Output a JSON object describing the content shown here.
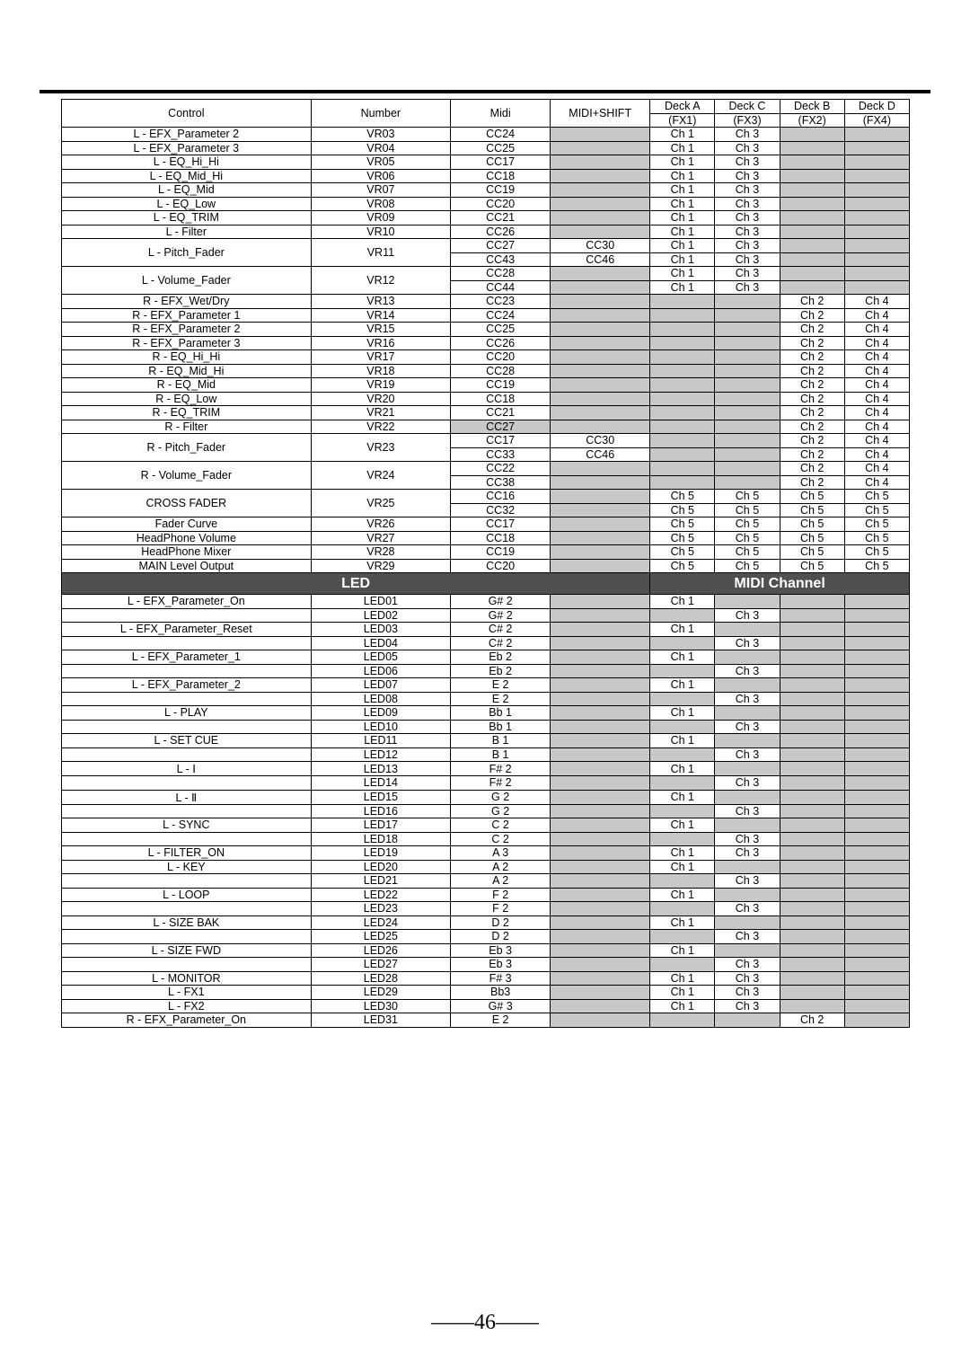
{
  "header": {
    "control": "Control",
    "number": "Number",
    "midi": "Midi",
    "midi_shift": "MIDI+SHIFT",
    "deck_a": "Deck A",
    "deck_a_sub": "(FX1)",
    "deck_c": "Deck C",
    "deck_c_sub": "(FX3)",
    "deck_b": "Deck B",
    "deck_b_sub": "(FX2)",
    "deck_d": "Deck D",
    "deck_d_sub": "(FX4)"
  },
  "rows1": [
    {
      "c": "L - EFX_Parameter 2",
      "n": "VR03",
      "m": "CC24",
      "s": "",
      "a": "Ch 1",
      "cc": "Ch 3",
      "b": "",
      "d": "",
      "sg": true,
      "bg": true,
      "dg": true
    },
    {
      "c": "L - EFX_Parameter 3",
      "n": "VR04",
      "m": "CC25",
      "s": "",
      "a": "Ch 1",
      "cc": "Ch 3",
      "b": "",
      "d": "",
      "sg": true,
      "bg": true,
      "dg": true
    },
    {
      "c": "L - EQ_Hi_Hi",
      "n": "VR05",
      "m": "CC17",
      "s": "",
      "a": "Ch 1",
      "cc": "Ch 3",
      "b": "",
      "d": "",
      "sg": true,
      "bg": true,
      "dg": true
    },
    {
      "c": "L - EQ_Mid_Hi",
      "n": "VR06",
      "m": "CC18",
      "s": "",
      "a": "Ch 1",
      "cc": "Ch 3",
      "b": "",
      "d": "",
      "sg": true,
      "bg": true,
      "dg": true
    },
    {
      "c": "L - EQ_Mid",
      "n": "VR07",
      "m": "CC19",
      "s": "",
      "a": "Ch 1",
      "cc": "Ch 3",
      "b": "",
      "d": "",
      "sg": true,
      "bg": true,
      "dg": true
    },
    {
      "c": "L - EQ_Low",
      "n": "VR08",
      "m": "CC20",
      "s": "",
      "a": "Ch 1",
      "cc": "Ch 3",
      "b": "",
      "d": "",
      "sg": true,
      "bg": true,
      "dg": true
    },
    {
      "c": "L - EQ_TRIM",
      "n": "VR09",
      "m": "CC21",
      "s": "",
      "a": "Ch 1",
      "cc": "Ch 3",
      "b": "",
      "d": "",
      "sg": true,
      "bg": true,
      "dg": true
    },
    {
      "c": "L - Filter",
      "n": "VR10",
      "m": "CC26",
      "s": "",
      "a": "Ch 1",
      "cc": "Ch 3",
      "b": "",
      "d": "",
      "sg": true,
      "bg": true,
      "dg": true
    }
  ],
  "span2a": [
    {
      "c": "L - Pitch_Fader",
      "n": "VR11",
      "r1": {
        "m": "CC27",
        "s": "CC30",
        "a": "Ch 1",
        "cc": "Ch 3",
        "b": "",
        "d": "",
        "bg": true,
        "dg": true
      },
      "r2": {
        "m": "CC43",
        "s": "CC46",
        "a": "Ch 1",
        "cc": "Ch 3",
        "b": "",
        "d": "",
        "bg": true,
        "dg": true
      }
    },
    {
      "c": "L - Volume_Fader",
      "n": "VR12",
      "r1": {
        "m": "CC28",
        "s": "",
        "a": "Ch 1",
        "cc": "Ch 3",
        "b": "",
        "d": "",
        "sg": true,
        "bg": true,
        "dg": true
      },
      "r2": {
        "m": "CC44",
        "s": "",
        "a": "Ch 1",
        "cc": "Ch 3",
        "b": "",
        "d": "",
        "sg": true,
        "bg": true,
        "dg": true
      }
    }
  ],
  "rows2": [
    {
      "c": "R - EFX_Wet/Dry",
      "n": "VR13",
      "m": "CC23",
      "s": "",
      "a": "",
      "cc": "",
      "b": "Ch 2",
      "d": "Ch 4",
      "sg": true,
      "ag": true,
      "ccg": true
    },
    {
      "c": "R - EFX_Parameter 1",
      "n": "VR14",
      "m": "CC24",
      "s": "",
      "a": "",
      "cc": "",
      "b": "Ch 2",
      "d": "Ch 4",
      "sg": true,
      "ag": true,
      "ccg": true
    },
    {
      "c": "R - EFX_Parameter 2",
      "n": "VR15",
      "m": "CC25",
      "s": "",
      "a": "",
      "cc": "",
      "b": "Ch 2",
      "d": "Ch 4",
      "sg": true,
      "ag": true,
      "ccg": true
    },
    {
      "c": "R - EFX_Parameter 3",
      "n": "VR16",
      "m": "CC26",
      "s": "",
      "a": "",
      "cc": "",
      "b": "Ch 2",
      "d": "Ch 4",
      "sg": true,
      "ag": true,
      "ccg": true
    },
    {
      "c": "R - EQ_Hi_Hi",
      "n": "VR17",
      "m": "CC20",
      "s": "",
      "a": "",
      "cc": "",
      "b": "Ch 2",
      "d": "Ch 4",
      "sg": true,
      "ag": true,
      "ccg": true
    },
    {
      "c": "R - EQ_Mid_Hi",
      "n": "VR18",
      "m": "CC28",
      "s": "",
      "a": "",
      "cc": "",
      "b": "Ch 2",
      "d": "Ch 4",
      "sg": true,
      "ag": true,
      "ccg": true
    },
    {
      "c": "R - EQ_Mid",
      "n": "VR19",
      "m": "CC19",
      "s": "",
      "a": "",
      "cc": "",
      "b": "Ch 2",
      "d": "Ch 4",
      "sg": true,
      "ag": true,
      "ccg": true
    },
    {
      "c": "R - EQ_Low",
      "n": "VR20",
      "m": "CC18",
      "s": "",
      "a": "",
      "cc": "",
      "b": "Ch 2",
      "d": "Ch 4",
      "sg": true,
      "ag": true,
      "ccg": true
    },
    {
      "c": "R - EQ_TRIM",
      "n": "VR21",
      "m": "CC21",
      "s": "",
      "a": "",
      "cc": "",
      "b": "Ch 2",
      "d": "Ch 4",
      "sg": true,
      "ag": true,
      "ccg": true
    },
    {
      "c": "R - Filter",
      "n": "VR22",
      "m": "CC27",
      "s": "",
      "a": "",
      "cc": "",
      "b": "Ch 2",
      "d": "Ch 4",
      "mg": true,
      "sg": true,
      "ag": true,
      "ccg": true
    }
  ],
  "span2b": [
    {
      "c": "R - Pitch_Fader",
      "n": "VR23",
      "r1": {
        "m": "CC17",
        "s": "CC30",
        "a": "",
        "cc": "",
        "b": "Ch 2",
        "d": "Ch 4",
        "ag": true,
        "ccg": true
      },
      "r2": {
        "m": "CC33",
        "s": "CC46",
        "a": "",
        "cc": "",
        "b": "Ch 2",
        "d": "Ch 4",
        "ag": true,
        "ccg": true
      }
    },
    {
      "c": "R - Volume_Fader",
      "n": "VR24",
      "r1": {
        "m": "CC22",
        "s": "",
        "a": "",
        "cc": "",
        "b": "Ch 2",
        "d": "Ch 4",
        "sg": true,
        "ag": true,
        "ccg": true
      },
      "r2": {
        "m": "CC38",
        "s": "",
        "a": "",
        "cc": "",
        "b": "Ch 2",
        "d": "Ch 4",
        "sg": true,
        "ag": true,
        "ccg": true
      }
    },
    {
      "c": "CROSS FADER",
      "n": "VR25",
      "r1": {
        "m": "CC16",
        "s": "",
        "a": "Ch 5",
        "cc": "Ch 5",
        "b": "Ch 5",
        "d": "Ch 5",
        "sg": true
      },
      "r2": {
        "m": "CC32",
        "s": "",
        "a": "Ch 5",
        "cc": "Ch 5",
        "b": "Ch 5",
        "d": "Ch 5",
        "sg": true
      }
    }
  ],
  "rows3": [
    {
      "c": "Fader Curve",
      "n": "VR26",
      "m": "CC17",
      "s": "",
      "a": "Ch 5",
      "cc": "Ch 5",
      "b": "Ch 5",
      "d": "Ch 5",
      "sg": true
    },
    {
      "c": "HeadPhone Volume",
      "n": "VR27",
      "m": "CC18",
      "s": "",
      "a": "Ch 5",
      "cc": "Ch 5",
      "b": "Ch 5",
      "d": "Ch 5",
      "sg": true
    },
    {
      "c": "HeadPhone Mixer",
      "n": "VR28",
      "m": "CC19",
      "s": "",
      "a": "Ch 5",
      "cc": "Ch 5",
      "b": "Ch 5",
      "d": "Ch 5",
      "sg": true
    },
    {
      "c": "MAIN Level Output",
      "n": "VR29",
      "m": "CC20",
      "s": "",
      "a": "Ch 5",
      "cc": "Ch 5",
      "b": "Ch 5",
      "d": "Ch 5",
      "sg": true
    }
  ],
  "section": {
    "led": "LED",
    "midi_channel": "MIDI Channel"
  },
  "rows4": [
    {
      "c": "L - EFX_Parameter_On",
      "n": "LED01",
      "m": "G# 2",
      "s": "",
      "a": "Ch 1",
      "cc": "",
      "b": "",
      "d": "",
      "sg": true,
      "ccg": true,
      "bg": true,
      "dg": true
    },
    {
      "c": "",
      "n": "LED02",
      "m": "G# 2",
      "s": "",
      "a": "",
      "cc": "Ch 3",
      "b": "",
      "d": "",
      "sg": true,
      "ag": true,
      "bg": true,
      "dg": true
    },
    {
      "c": "L - EFX_Parameter_Reset",
      "n": "LED03",
      "m": "C# 2",
      "s": "",
      "a": "Ch 1",
      "cc": "",
      "b": "",
      "d": "",
      "sg": true,
      "ccg": true,
      "bg": true,
      "dg": true
    },
    {
      "c": "",
      "n": "LED04",
      "m": "C# 2",
      "s": "",
      "a": "",
      "cc": "Ch 3",
      "b": "",
      "d": "",
      "sg": true,
      "ag": true,
      "bg": true,
      "dg": true
    },
    {
      "c": "L - EFX_Parameter_1",
      "n": "LED05",
      "m": "Eb 2",
      "s": "",
      "a": "Ch 1",
      "cc": "",
      "b": "",
      "d": "",
      "sg": true,
      "ccg": true,
      "bg": true,
      "dg": true
    },
    {
      "c": "",
      "n": "LED06",
      "m": "Eb 2",
      "s": "",
      "a": "",
      "cc": "Ch 3",
      "b": "",
      "d": "",
      "sg": true,
      "ag": true,
      "bg": true,
      "dg": true
    },
    {
      "c": "L - EFX_Parameter_2",
      "n": "LED07",
      "m": "E 2",
      "s": "",
      "a": "Ch 1",
      "cc": "",
      "b": "",
      "d": "",
      "sg": true,
      "ccg": true,
      "bg": true,
      "dg": true
    },
    {
      "c": "",
      "n": "LED08",
      "m": "E 2",
      "s": "",
      "a": "",
      "cc": "Ch 3",
      "b": "",
      "d": "",
      "sg": true,
      "ag": true,
      "bg": true,
      "dg": true
    },
    {
      "c": "L - PLAY",
      "n": "LED09",
      "m": "Bb 1",
      "s": "",
      "a": "Ch 1",
      "cc": "",
      "b": "",
      "d": "",
      "sg": true,
      "ccg": true,
      "bg": true,
      "dg": true
    },
    {
      "c": "",
      "n": "LED10",
      "m": "Bb 1",
      "s": "",
      "a": "",
      "cc": "Ch 3",
      "b": "",
      "d": "",
      "sg": true,
      "ag": true,
      "bg": true,
      "dg": true
    },
    {
      "c": "L - SET CUE",
      "n": "LED11",
      "m": "B 1",
      "s": "",
      "a": "Ch 1",
      "cc": "",
      "b": "",
      "d": "",
      "sg": true,
      "ccg": true,
      "bg": true,
      "dg": true
    },
    {
      "c": "",
      "n": "LED12",
      "m": "B 1",
      "s": "",
      "a": "",
      "cc": "Ch 3",
      "b": "",
      "d": "",
      "sg": true,
      "ag": true,
      "bg": true,
      "dg": true
    },
    {
      "c": "L - Ⅰ",
      "n": "LED13",
      "m": "F# 2",
      "s": "",
      "a": "Ch 1",
      "cc": "",
      "b": "",
      "d": "",
      "sg": true,
      "ccg": true,
      "bg": true,
      "dg": true
    },
    {
      "c": "",
      "n": "LED14",
      "m": "F# 2",
      "s": "",
      "a": "",
      "cc": "Ch 3",
      "b": "",
      "d": "",
      "sg": true,
      "ag": true,
      "bg": true,
      "dg": true
    },
    {
      "c": "L - Ⅱ",
      "n": "LED15",
      "m": "G 2",
      "s": "",
      "a": "Ch 1",
      "cc": "",
      "b": "",
      "d": "",
      "sg": true,
      "ccg": true,
      "bg": true,
      "dg": true
    },
    {
      "c": "",
      "n": "LED16",
      "m": "G 2",
      "s": "",
      "a": "",
      "cc": "Ch 3",
      "b": "",
      "d": "",
      "sg": true,
      "ag": true,
      "bg": true,
      "dg": true
    },
    {
      "c": "L - SYNC",
      "n": "LED17",
      "m": "C 2",
      "s": "",
      "a": "Ch 1",
      "cc": "",
      "b": "",
      "d": "",
      "sg": true,
      "ccg": true,
      "bg": true,
      "dg": true
    },
    {
      "c": "",
      "n": "LED18",
      "m": "C 2",
      "s": "",
      "a": "",
      "cc": "Ch 3",
      "b": "",
      "d": "",
      "sg": true,
      "ag": true,
      "bg": true,
      "dg": true
    },
    {
      "c": "L - FILTER_ON",
      "n": "LED19",
      "m": "A 3",
      "s": "",
      "a": "Ch 1",
      "cc": "Ch 3",
      "b": "",
      "d": "",
      "sg": true,
      "bg": true,
      "dg": true
    },
    {
      "c": "L - KEY",
      "n": "LED20",
      "m": "A 2",
      "s": "",
      "a": "Ch 1",
      "cc": "",
      "b": "",
      "d": "",
      "sg": true,
      "ccg": true,
      "bg": true,
      "dg": true
    },
    {
      "c": "",
      "n": "LED21",
      "m": "A 2",
      "s": "",
      "a": "",
      "cc": "Ch 3",
      "b": "",
      "d": "",
      "sg": true,
      "ag": true,
      "bg": true,
      "dg": true
    },
    {
      "c": "L - LOOP",
      "n": "LED22",
      "m": "F 2",
      "s": "",
      "a": "Ch 1",
      "cc": "",
      "b": "",
      "d": "",
      "sg": true,
      "ccg": true,
      "bg": true,
      "dg": true
    },
    {
      "c": "",
      "n": "LED23",
      "m": "F 2",
      "s": "",
      "a": "",
      "cc": "Ch 3",
      "b": "",
      "d": "",
      "sg": true,
      "ag": true,
      "bg": true,
      "dg": true
    },
    {
      "c": "L - SIZE BAK",
      "n": "LED24",
      "m": "D 2",
      "s": "",
      "a": "Ch 1",
      "cc": "",
      "b": "",
      "d": "",
      "sg": true,
      "ccg": true,
      "bg": true,
      "dg": true
    },
    {
      "c": "",
      "n": "LED25",
      "m": "D 2",
      "s": "",
      "a": "",
      "cc": "Ch 3",
      "b": "",
      "d": "",
      "sg": true,
      "ag": true,
      "bg": true,
      "dg": true
    },
    {
      "c": "L - SIZE FWD",
      "n": "LED26",
      "m": "Eb 3",
      "s": "",
      "a": "Ch 1",
      "cc": "",
      "b": "",
      "d": "",
      "sg": true,
      "ccg": true,
      "bg": true,
      "dg": true
    },
    {
      "c": "",
      "n": "LED27",
      "m": "Eb 3",
      "s": "",
      "a": "",
      "cc": "Ch 3",
      "b": "",
      "d": "",
      "sg": true,
      "ag": true,
      "bg": true,
      "dg": true
    },
    {
      "c": "L - MONITOR",
      "n": "LED28",
      "m": "F# 3",
      "s": "",
      "a": "Ch 1",
      "cc": "Ch 3",
      "b": "",
      "d": "",
      "sg": true,
      "bg": true,
      "dg": true
    },
    {
      "c": "L - FX1",
      "n": "LED29",
      "m": "Bb3",
      "s": "",
      "a": "Ch 1",
      "cc": "Ch 3",
      "b": "",
      "d": "",
      "sg": true,
      "bg": true,
      "dg": true
    },
    {
      "c": "L - FX2",
      "n": "LED30",
      "m": "G# 3",
      "s": "",
      "a": "Ch 1",
      "cc": "Ch 3",
      "b": "",
      "d": "",
      "sg": true,
      "bg": true,
      "dg": true
    },
    {
      "c": "R -  EFX_Parameter_On",
      "n": "LED31",
      "m": "E 2",
      "s": "",
      "a": "",
      "cc": "",
      "b": "Ch 2",
      "d": "",
      "sg": true,
      "ag": true,
      "ccg": true,
      "dg": true
    }
  ],
  "page_number": "46"
}
